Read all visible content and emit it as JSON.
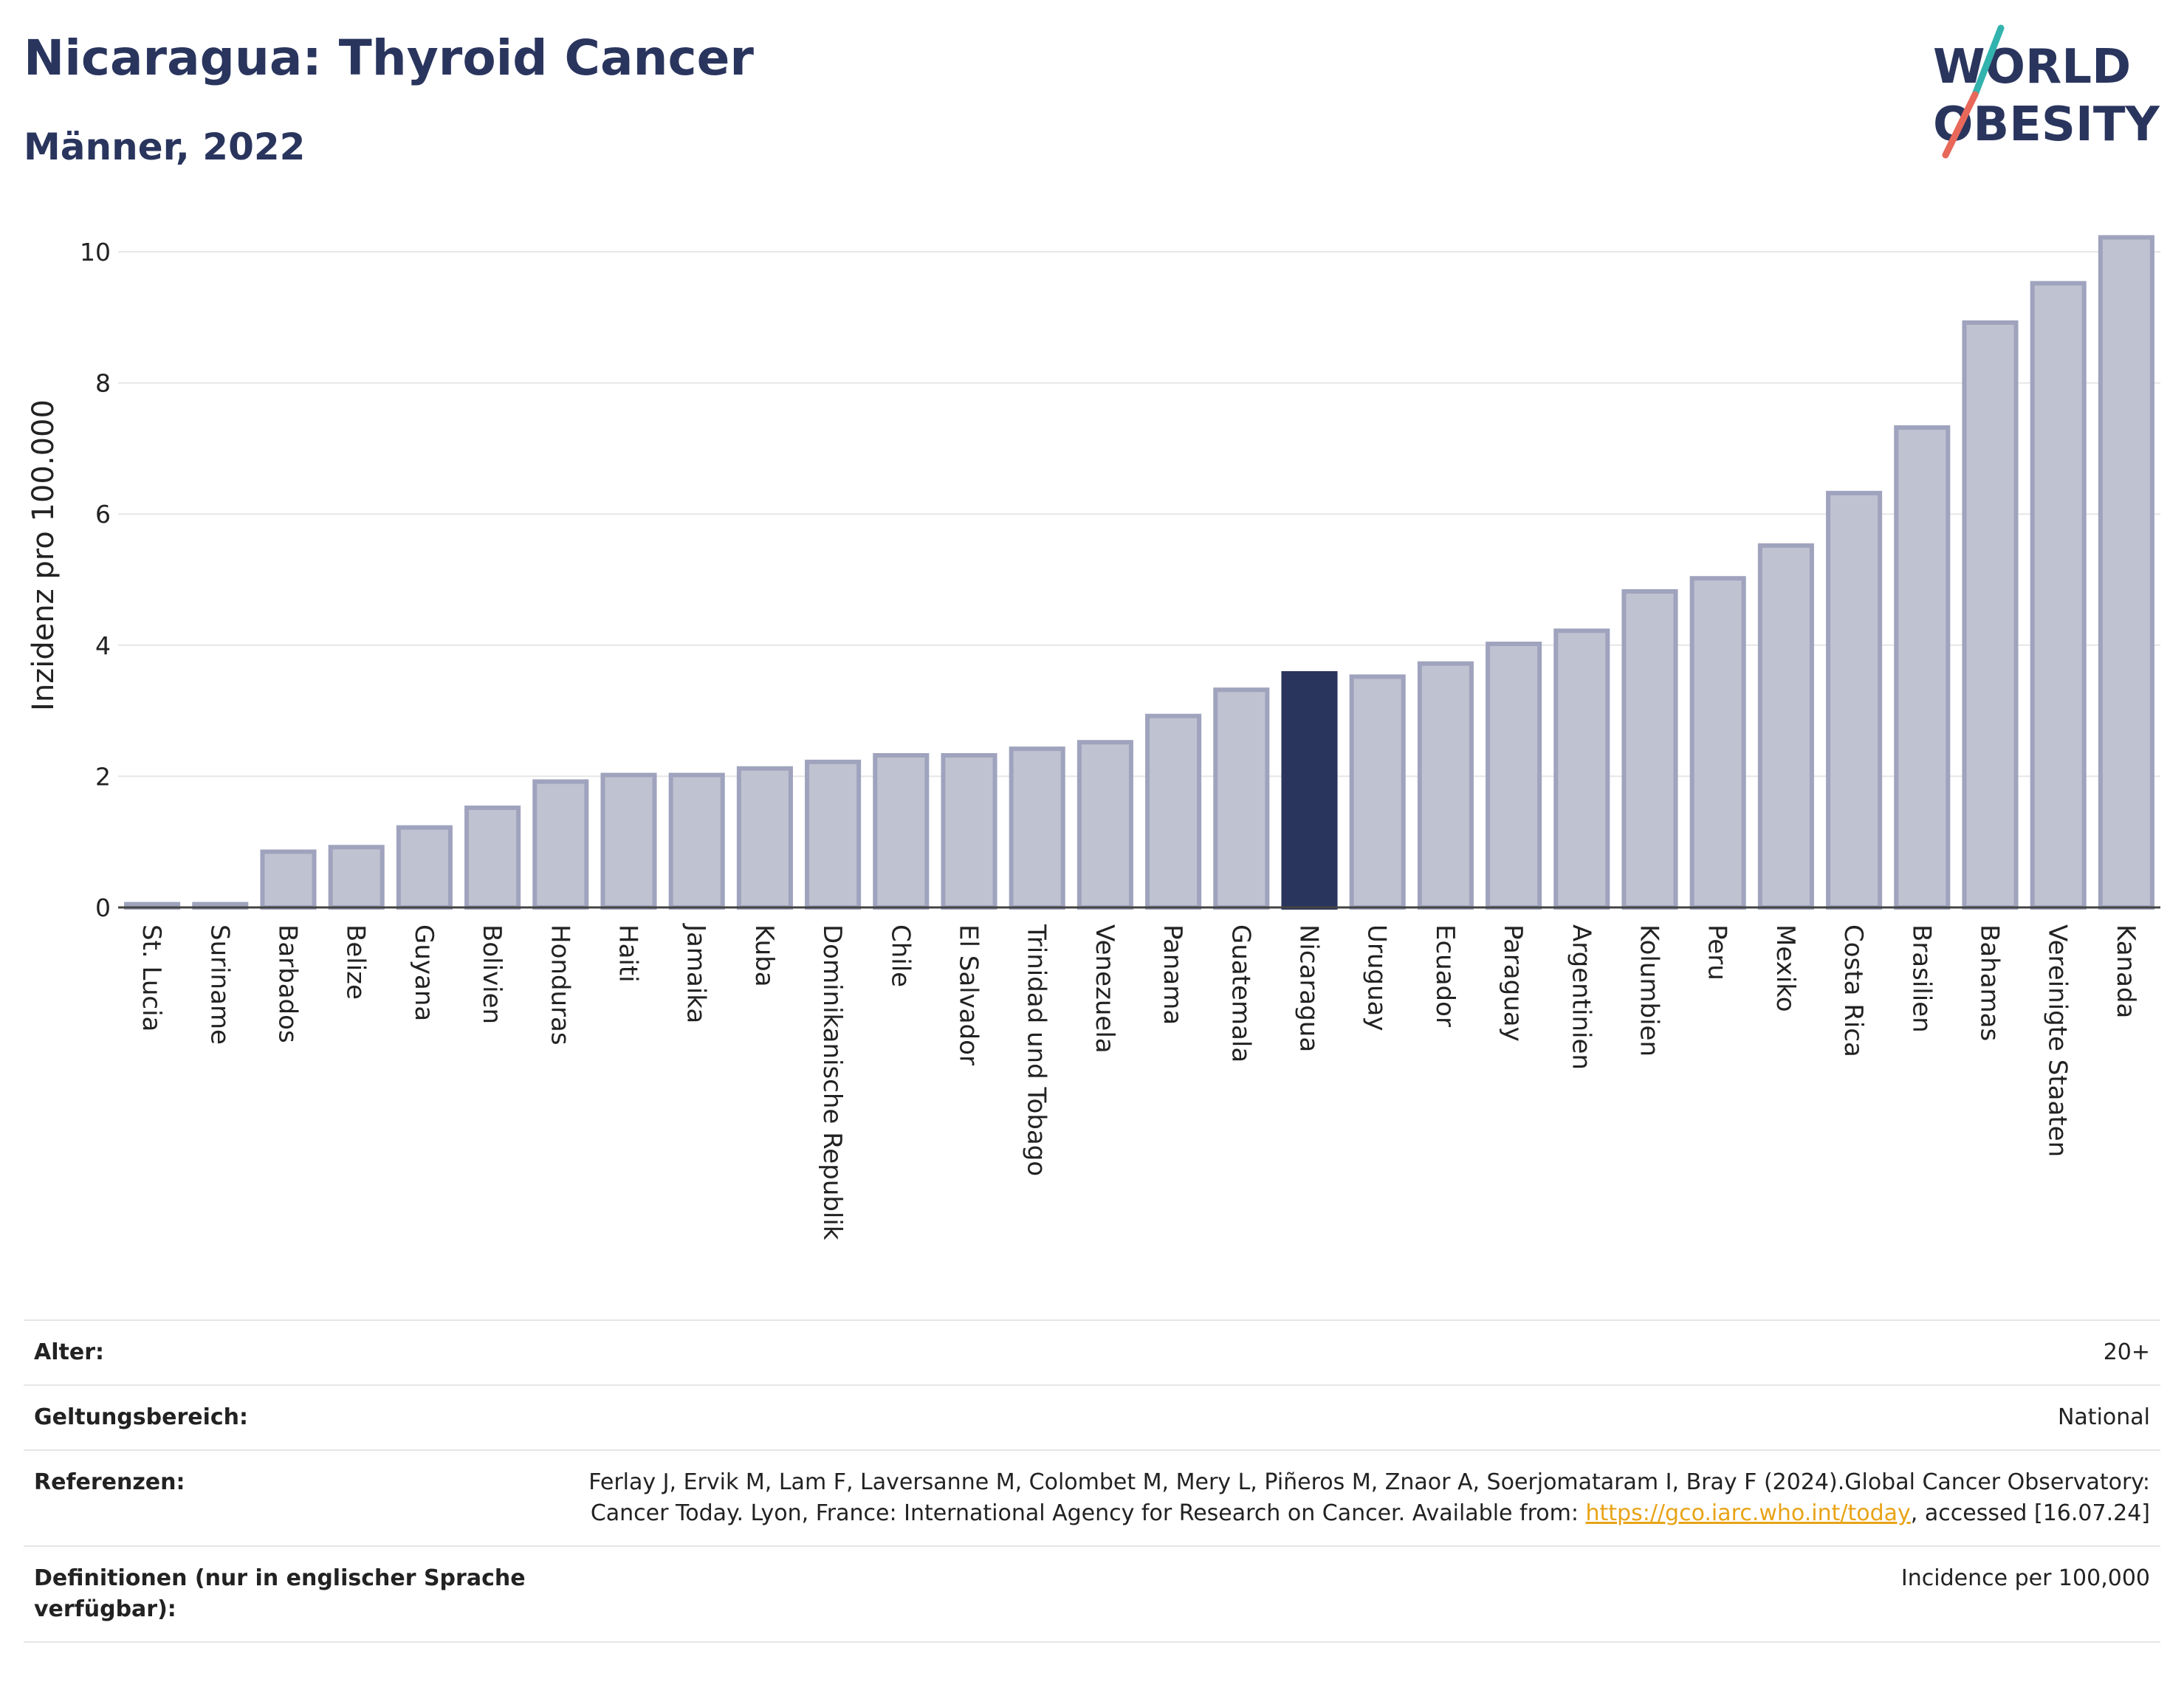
{
  "title": "Nicaragua: Thyroid Cancer",
  "subtitle": "Männer, 2022",
  "logo": {
    "line1": "WORLD",
    "line2": "OBESITY",
    "accent_teal": "#33b3ad",
    "accent_coral": "#e8685a"
  },
  "colors": {
    "bar": "#bfc2d0",
    "bar_border": "#9fa3bd",
    "highlight": "#2a355e",
    "grid": "#e6e6e6"
  },
  "chart_data": {
    "type": "bar",
    "ylabel": "Inzidenz pro 100.000",
    "ylim": [
      0,
      10.4
    ],
    "yticks": [
      0,
      2,
      4,
      6,
      8,
      10
    ],
    "highlight": "Nicaragua",
    "categories": [
      "St. Lucia",
      "Suriname",
      "Barbados",
      "Belize",
      "Guyana",
      "Bolivien",
      "Honduras",
      "Haiti",
      "Jamaika",
      "Kuba",
      "Dominikanische Republik",
      "Chile",
      "El Salvador",
      "Trinidad und Tobago",
      "Venezuela",
      "Panama",
      "Guatemala",
      "Nicaragua",
      "Uruguay",
      "Ecuador",
      "Paraguay",
      "Argentinien",
      "Kolumbien",
      "Peru",
      "Mexiko",
      "Costa Rica",
      "Brasilien",
      "Bahamas",
      "Vereinigte Staaten",
      "Kanada"
    ],
    "values": [
      0.05,
      0.05,
      0.85,
      0.92,
      1.22,
      1.52,
      1.92,
      2.02,
      2.02,
      2.12,
      2.22,
      2.32,
      2.32,
      2.42,
      2.52,
      2.92,
      3.32,
      3.57,
      3.52,
      3.72,
      4.02,
      4.22,
      4.82,
      5.02,
      5.52,
      6.32,
      7.32,
      8.92,
      9.52,
      10.22
    ]
  },
  "meta": [
    {
      "label": "Alter:",
      "value": "20+"
    },
    {
      "label": "Geltungsbereich:",
      "value": "National"
    },
    {
      "label": "Referenzen:",
      "value_pre": "Ferlay J, Ervik M, Lam F, Laversanne M, Colombet M, Mery L, Piñeros M, Znaor A, Soerjomataram I, Bray F (2024).Global Cancer Observatory: Cancer Today. Lyon, France: International Agency for Research on Cancer. Available from: ",
      "link": "https://gco.iarc.who.int/today",
      "value_post": ", accessed [16.07.24]"
    },
    {
      "label": "Definitionen (nur in englischer Sprache verfügbar):",
      "value": "Incidence per 100,000"
    }
  ]
}
